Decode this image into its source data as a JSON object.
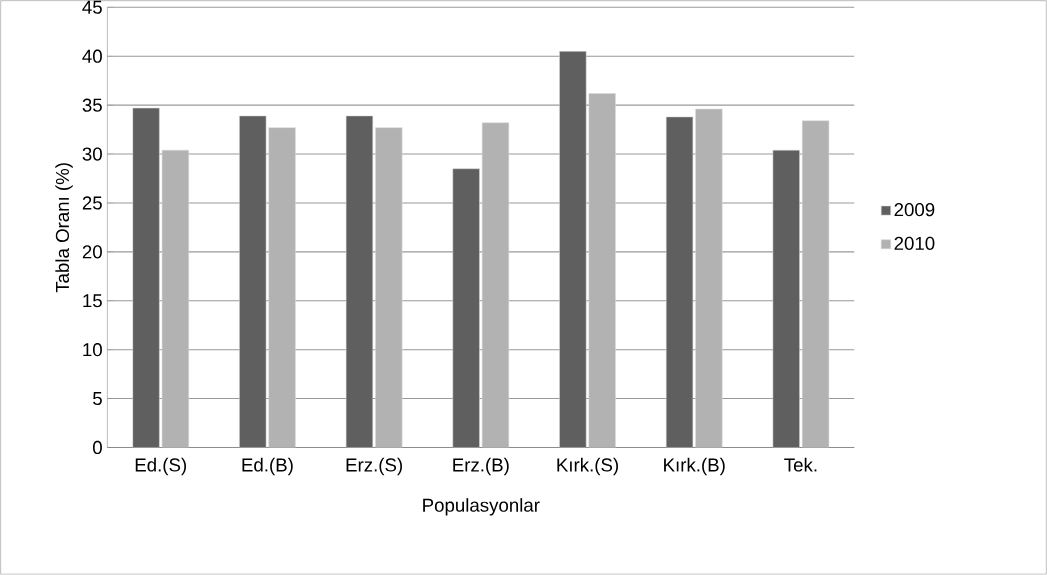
{
  "chart_data": {
    "type": "bar",
    "xlabel": "Populasyonlar",
    "ylabel": "Tabla Oranı (%)",
    "categories": [
      "Ed.(S)",
      "Ed.(B)",
      "Erz.(S)",
      "Erz.(B)",
      "Kırk.(S)",
      "Kırk.(B)",
      "Tek."
    ],
    "series": [
      {
        "name": "2009",
        "color": "#5f5f5f",
        "values": [
          34.7,
          33.9,
          33.9,
          28.5,
          40.5,
          33.8,
          30.4
        ]
      },
      {
        "name": "2010",
        "color": "#b2b2b2",
        "values": [
          30.4,
          32.7,
          32.7,
          33.2,
          36.2,
          34.6,
          33.4
        ]
      }
    ],
    "ylim": [
      0,
      45
    ],
    "yticks": [
      0,
      5,
      10,
      15,
      20,
      25,
      30,
      35,
      40,
      45
    ],
    "grid": "y",
    "legend": "right"
  }
}
